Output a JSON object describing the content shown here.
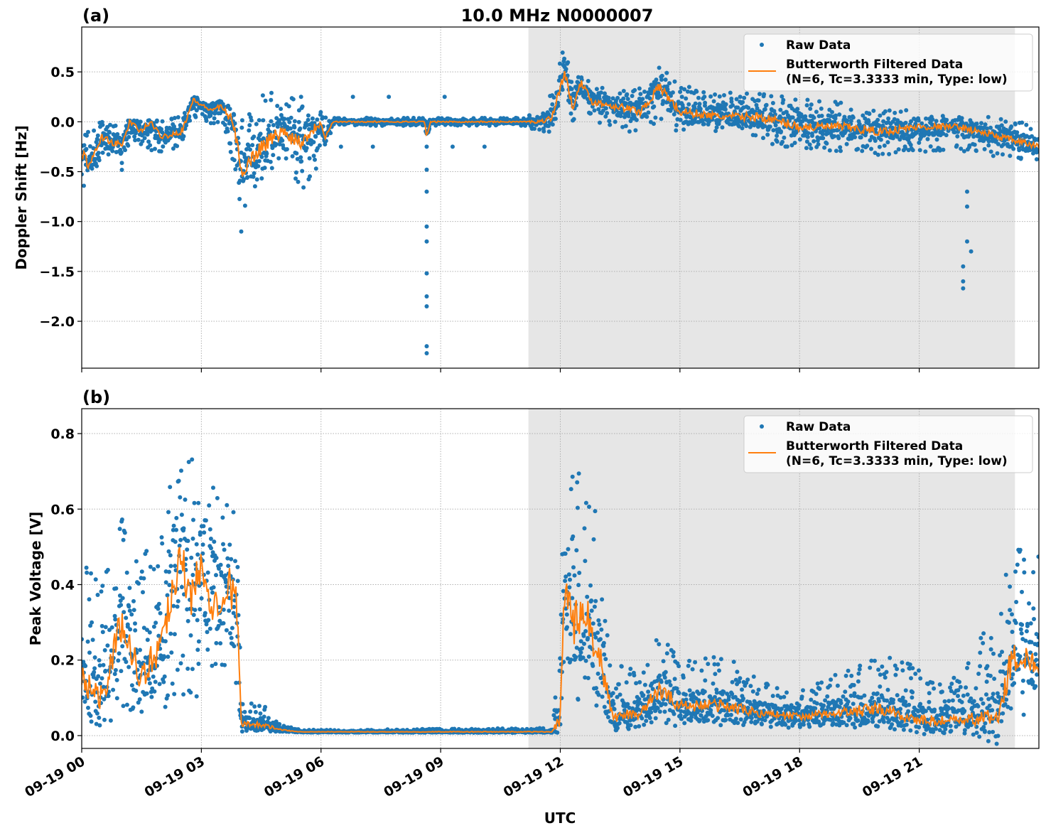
{
  "chart_data": [
    {
      "type": "scatter",
      "panel_label": "(a)",
      "title": "10.0 MHz N0000007",
      "xlabel": "",
      "ylabel": "Doppler Shift [Hz]",
      "xlim_hours": [
        0,
        24
      ],
      "ylim": [
        -2.47,
        0.95
      ],
      "yticks": [
        0.5,
        0.0,
        -0.5,
        -1.0,
        -1.5,
        -2.0
      ],
      "ytick_labels": [
        "0.5",
        "0.0",
        "−0.5",
        "−1.0",
        "−1.5",
        "−2.0"
      ],
      "shaded_hours": [
        11.2,
        23.4
      ],
      "grid": true,
      "legend": {
        "placement": "top-right",
        "entries": [
          "Raw Data",
          "Butterworth Filtered Data",
          "(N=6, Tc=3.3333 min, Type: low)"
        ]
      },
      "series_keypoints_columns": [
        "hour",
        "filtered",
        "raw_min",
        "raw_max"
      ],
      "series_keypoints": [
        [
          0,
          -0.3,
          -0.7,
          -0.1
        ],
        [
          0.2,
          -0.45,
          -0.6,
          -0.05
        ],
        [
          0.5,
          -0.15,
          -0.35,
          0
        ],
        [
          1.0,
          -0.25,
          -0.5,
          -0.05
        ],
        [
          1.2,
          0.0,
          -0.2,
          0.05
        ],
        [
          1.5,
          -0.1,
          -0.3,
          0.05
        ],
        [
          1.7,
          0.0,
          -0.3,
          0.05
        ],
        [
          2.0,
          -0.15,
          -0.3,
          0
        ],
        [
          2.5,
          -0.1,
          -0.25,
          0.1
        ],
        [
          2.8,
          0.22,
          0.05,
          0.27
        ],
        [
          3.2,
          0.12,
          0,
          0.2
        ],
        [
          3.5,
          0.15,
          -0.1,
          0.2
        ],
        [
          3.8,
          0.0,
          -0.4,
          0.15
        ],
        [
          4.0,
          -0.5,
          -0.9,
          0.0
        ],
        [
          4.5,
          -0.25,
          -0.6,
          0.3
        ],
        [
          5.0,
          -0.1,
          -0.5,
          0.3
        ],
        [
          5.5,
          -0.2,
          -0.7,
          0.2
        ],
        [
          6.0,
          0.0,
          -0.4,
          0.05
        ],
        [
          6.1,
          -0.15,
          -0.3,
          0.05
        ],
        [
          6.3,
          0.0,
          -0.04,
          0.04
        ],
        [
          8.6,
          0.0,
          -0.04,
          0.04
        ],
        [
          8.65,
          -0.15,
          -0.1,
          0.04
        ],
        [
          8.75,
          0.0,
          -0.04,
          0.04
        ],
        [
          11.0,
          0.0,
          -0.04,
          0.04
        ],
        [
          11.5,
          0.0,
          -0.1,
          0.1
        ],
        [
          11.8,
          0.05,
          -0.1,
          0.3
        ],
        [
          12.1,
          0.5,
          0.2,
          0.8
        ],
        [
          12.3,
          0.15,
          0,
          0.55
        ],
        [
          12.5,
          0.4,
          0.1,
          0.55
        ],
        [
          12.8,
          0.2,
          0,
          0.35
        ],
        [
          13.5,
          0.15,
          -0.1,
          0.35
        ],
        [
          14.0,
          0.1,
          -0.1,
          0.35
        ],
        [
          14.5,
          0.35,
          0,
          0.6
        ],
        [
          15.0,
          0.1,
          -0.15,
          0.4
        ],
        [
          16,
          0.05,
          -0.1,
          0.3
        ],
        [
          17,
          0.05,
          -0.2,
          0.3
        ],
        [
          18,
          -0.05,
          -0.3,
          0.25
        ],
        [
          19,
          -0.05,
          -0.3,
          0.2
        ],
        [
          20,
          -0.1,
          -0.35,
          0.15
        ],
        [
          21,
          -0.05,
          -0.3,
          0.1
        ],
        [
          22,
          -0.05,
          -0.3,
          0.05
        ],
        [
          23,
          -0.15,
          -0.35,
          0.05
        ],
        [
          24,
          -0.25,
          -0.4,
          -0.05
        ]
      ],
      "outliers": [
        [
          4.0,
          -1.1
        ],
        [
          8.65,
          -0.25
        ],
        [
          8.65,
          -0.48
        ],
        [
          8.65,
          -0.7
        ],
        [
          8.65,
          -1.05
        ],
        [
          8.65,
          -1.2
        ],
        [
          8.65,
          -1.52
        ],
        [
          8.65,
          -1.75
        ],
        [
          8.65,
          -1.85
        ],
        [
          8.65,
          -2.25
        ],
        [
          8.65,
          -2.32
        ],
        [
          5.5,
          0.25
        ],
        [
          6.8,
          0.25
        ],
        [
          7.7,
          0.25
        ],
        [
          9.1,
          0.25
        ],
        [
          6.5,
          -0.25
        ],
        [
          7.3,
          -0.25
        ],
        [
          9.3,
          -0.25
        ],
        [
          10.1,
          -0.25
        ],
        [
          22.2,
          -0.7
        ],
        [
          22.2,
          -0.85
        ],
        [
          22.2,
          -1.2
        ],
        [
          22.3,
          -1.3
        ],
        [
          22.1,
          -1.45
        ],
        [
          22.1,
          -1.6
        ],
        [
          22.1,
          -1.67
        ]
      ]
    },
    {
      "type": "scatter",
      "panel_label": "(b)",
      "xlabel": "UTC",
      "ylabel": "Peak Voltage [V]",
      "xlim_hours": [
        0,
        24
      ],
      "ylim": [
        -0.034,
        0.866
      ],
      "yticks": [
        0.0,
        0.2,
        0.4,
        0.6,
        0.8
      ],
      "ytick_labels": [
        "0.0",
        "0.2",
        "0.4",
        "0.6",
        "0.8"
      ],
      "xticks_hours": [
        0,
        3,
        6,
        9,
        12,
        15,
        18,
        21
      ],
      "xtick_labels": [
        "09-19 00",
        "09-19 03",
        "09-19 06",
        "09-19 09",
        "09-19 12",
        "09-19 15",
        "09-19 18",
        "09-19 21"
      ],
      "shaded_hours": [
        11.2,
        23.4
      ],
      "grid": true,
      "legend": {
        "placement": "top-right",
        "entries": [
          "Raw Data",
          "Butterworth Filtered Data",
          "(N=6, Tc=3.3333 min, Type: low)"
        ]
      },
      "series_keypoints_columns": [
        "hour",
        "filtered",
        "raw_min",
        "raw_max"
      ],
      "series_keypoints": [
        [
          0,
          0.15,
          0.03,
          0.45
        ],
        [
          0.5,
          0.1,
          0.03,
          0.45
        ],
        [
          1.0,
          0.3,
          0.05,
          0.6
        ],
        [
          1.5,
          0.15,
          0.05,
          0.45
        ],
        [
          2.0,
          0.25,
          0.05,
          0.65
        ],
        [
          2.5,
          0.5,
          0.1,
          0.8
        ],
        [
          2.7,
          0.35,
          0.1,
          0.8
        ],
        [
          3.0,
          0.45,
          0.1,
          0.65
        ],
        [
          3.3,
          0.35,
          0.1,
          0.7
        ],
        [
          3.7,
          0.4,
          0.1,
          0.65
        ],
        [
          3.9,
          0.35,
          0.1,
          0.75
        ],
        [
          4.0,
          0.03,
          0.01,
          0.1
        ],
        [
          4.5,
          0.03,
          0.01,
          0.09
        ],
        [
          5.0,
          0.015,
          0.01,
          0.03
        ],
        [
          5.5,
          0.01,
          0.008,
          0.015
        ],
        [
          11.8,
          0.01,
          0.008,
          0.02
        ],
        [
          12.0,
          0.05,
          0.01,
          0.3
        ],
        [
          12.1,
          0.4,
          0.1,
          0.7
        ],
        [
          12.3,
          0.3,
          0.05,
          0.79
        ],
        [
          12.7,
          0.3,
          0.05,
          0.75
        ],
        [
          13.0,
          0.2,
          0.03,
          0.5
        ],
        [
          13.3,
          0.05,
          0.01,
          0.2
        ],
        [
          14,
          0.06,
          0.01,
          0.18
        ],
        [
          14.5,
          0.12,
          0.02,
          0.28
        ],
        [
          15,
          0.08,
          0.02,
          0.2
        ],
        [
          16,
          0.08,
          0.02,
          0.22
        ],
        [
          17,
          0.06,
          0.02,
          0.15
        ],
        [
          18,
          0.05,
          0.02,
          0.12
        ],
        [
          19,
          0.06,
          0.02,
          0.17
        ],
        [
          20,
          0.07,
          0.02,
          0.22
        ],
        [
          21,
          0.04,
          0.01,
          0.18
        ],
        [
          22,
          0.04,
          0.01,
          0.15
        ],
        [
          23,
          0.05,
          0.02,
          0.35
        ],
        [
          23.3,
          0.2,
          0.05,
          0.5
        ],
        [
          24,
          0.2,
          0.05,
          0.48
        ]
      ],
      "outliers": []
    }
  ],
  "colors": {
    "raw": "#1f77b4",
    "filtered": "#ff7f0e",
    "shade": "#e6e6e6"
  }
}
